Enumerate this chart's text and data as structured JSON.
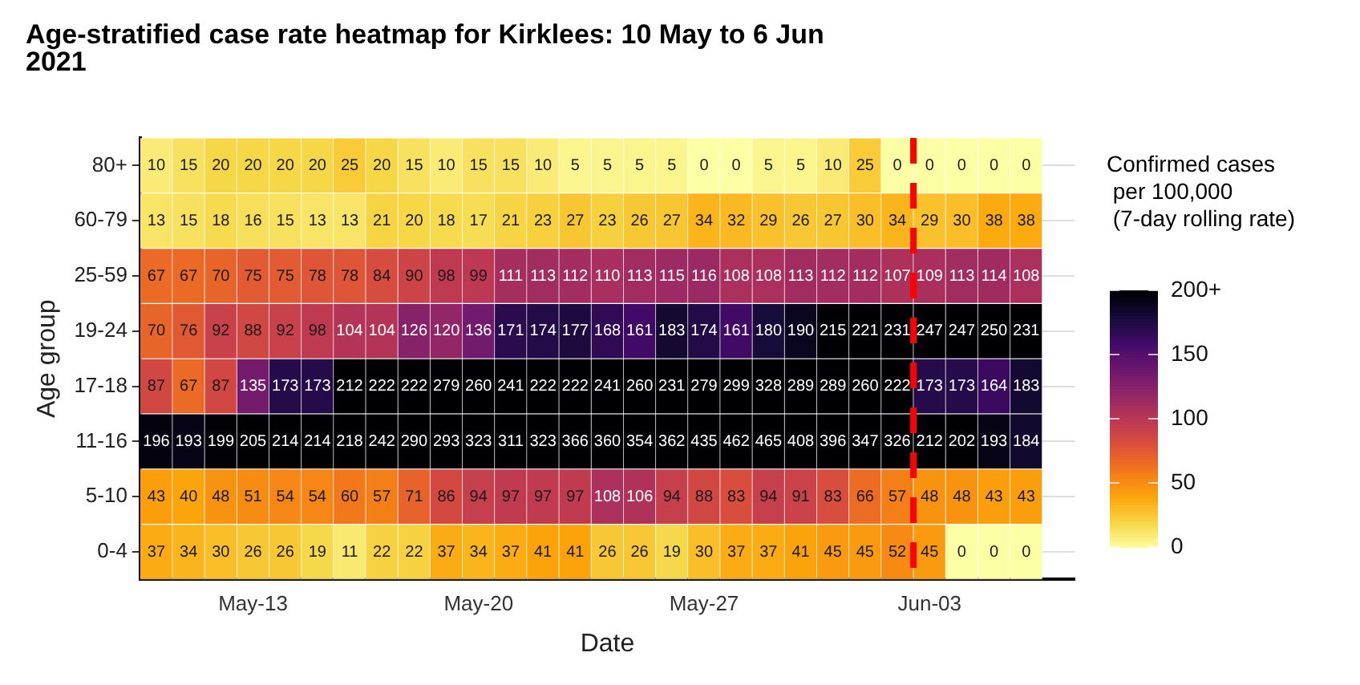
{
  "chart_data": {
    "type": "heatmap",
    "title": [
      "Age-stratified case rate heatmap for Kirklees: 10 May to 6 Jun",
      "2021"
    ],
    "xlabel": "Date",
    "ylabel": "Age group",
    "clabel": [
      "Confirmed cases",
      " per 100,000",
      " (7-day rolling rate)"
    ],
    "x": [
      "2021-05-10",
      "2021-05-11",
      "2021-05-12",
      "2021-05-13",
      "2021-05-14",
      "2021-05-15",
      "2021-05-16",
      "2021-05-17",
      "2021-05-18",
      "2021-05-19",
      "2021-05-20",
      "2021-05-21",
      "2021-05-22",
      "2021-05-23",
      "2021-05-24",
      "2021-05-25",
      "2021-05-26",
      "2021-05-27",
      "2021-05-28",
      "2021-05-29",
      "2021-05-30",
      "2021-05-31",
      "2021-06-01",
      "2021-06-02",
      "2021-06-03",
      "2021-06-04",
      "2021-06-05",
      "2021-06-06"
    ],
    "xlim": [
      "2021-05-09T12:00",
      "2021-06-07T12:00"
    ],
    "xticks": [
      {
        "value": "2021-05-13",
        "label": "May-13"
      },
      {
        "value": "2021-05-20",
        "label": "May-20"
      },
      {
        "value": "2021-05-27",
        "label": "May-27"
      },
      {
        "value": "2021-06-03",
        "label": "Jun-03"
      }
    ],
    "y_categories": [
      "80+",
      "60-79",
      "25-59",
      "19-24",
      "17-18",
      "11-16",
      "5-10",
      "0-4"
    ],
    "cells": [
      [
        10,
        15,
        20,
        20,
        20,
        20,
        25,
        20,
        15,
        10,
        15,
        15,
        10,
        5,
        5,
        5,
        5,
        0,
        0,
        5,
        5,
        10,
        25,
        0,
        0,
        0,
        0,
        0
      ],
      [
        13,
        15,
        18,
        16,
        15,
        13,
        13,
        21,
        20,
        18,
        17,
        21,
        23,
        27,
        23,
        26,
        27,
        34,
        32,
        29,
        26,
        27,
        30,
        34,
        29,
        30,
        38,
        38
      ],
      [
        67,
        67,
        70,
        75,
        75,
        78,
        78,
        84,
        90,
        98,
        99,
        111,
        113,
        112,
        110,
        113,
        115,
        116,
        108,
        108,
        113,
        112,
        112,
        107,
        109,
        113,
        114,
        108
      ],
      [
        70,
        76,
        92,
        88,
        92,
        98,
        104,
        104,
        126,
        120,
        136,
        171,
        174,
        177,
        168,
        161,
        183,
        174,
        161,
        180,
        190,
        215,
        221,
        231,
        247,
        247,
        250,
        231
      ],
      [
        87,
        67,
        87,
        135,
        173,
        173,
        212,
        222,
        222,
        279,
        260,
        241,
        222,
        222,
        241,
        260,
        231,
        279,
        299,
        328,
        289,
        289,
        260,
        222,
        173,
        173,
        164,
        183
      ],
      [
        196,
        193,
        199,
        205,
        214,
        214,
        218,
        242,
        290,
        293,
        323,
        311,
        323,
        366,
        360,
        354,
        362,
        435,
        462,
        465,
        408,
        396,
        347,
        326,
        212,
        202,
        193,
        184
      ],
      [
        43,
        40,
        48,
        51,
        54,
        54,
        60,
        57,
        71,
        86,
        94,
        97,
        97,
        97,
        108,
        106,
        94,
        88,
        83,
        94,
        91,
        83,
        66,
        57,
        48,
        48,
        43,
        43
      ],
      [
        37,
        34,
        30,
        26,
        26,
        19,
        11,
        22,
        22,
        37,
        34,
        37,
        41,
        41,
        26,
        26,
        19,
        30,
        37,
        37,
        41,
        45,
        45,
        52,
        45,
        0,
        0,
        0
      ]
    ],
    "data_labels": true,
    "clim": [
      0,
      200
    ],
    "cticks": [
      0,
      50,
      100,
      150,
      {
        "value": 200,
        "label": "200+"
      }
    ],
    "ref_lines": [
      {
        "axis": "x",
        "value": "2021-06-02T12:00",
        "color": "#ff0000",
        "line_style": "dashed"
      }
    ],
    "grid": "y",
    "legend": false
  }
}
